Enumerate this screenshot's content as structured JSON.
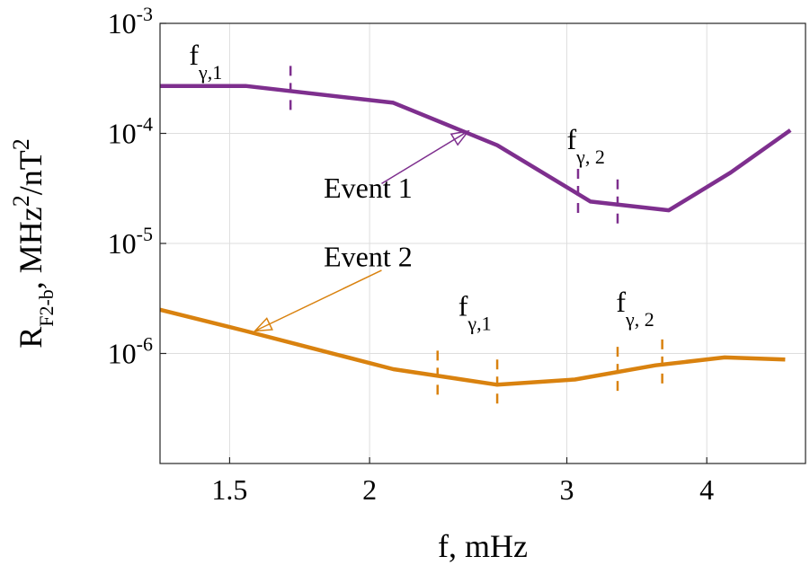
{
  "chart_data": {
    "type": "line",
    "xlabel": "f, mHz",
    "ylabel": {
      "main": "R",
      "sub": "F2-b",
      "rest": ", MHz",
      "sup1": "2",
      "mid": "/nT",
      "sup2": "2"
    },
    "x_scale": "log",
    "y_scale": "log",
    "xlim": [
      1.3,
      4.9
    ],
    "ylim": [
      1e-07,
      0.001
    ],
    "x_ticks": [
      {
        "value": 1.5,
        "label": "1.5"
      },
      {
        "value": 2,
        "label": "2"
      },
      {
        "value": 3,
        "label": "3"
      },
      {
        "value": 4,
        "label": "4"
      }
    ],
    "y_ticks": [
      {
        "value": 1e-06,
        "base": "10",
        "exp": "-6"
      },
      {
        "value": 1e-05,
        "base": "10",
        "exp": "-5"
      },
      {
        "value": 0.0001,
        "base": "10",
        "exp": "-4"
      },
      {
        "value": 0.001,
        "base": "10",
        "exp": "-3"
      }
    ],
    "grid": true,
    "series": [
      {
        "name": "Event 1",
        "color": "#7e2f8e",
        "x": [
          1.3,
          1.55,
          2.1,
          2.6,
          3.15,
          3.7,
          4.2,
          4.75
        ],
        "y": [
          0.00027,
          0.00027,
          0.00019,
          7.8e-05,
          2.4e-05,
          2e-05,
          4.4e-05,
          0.000107
        ]
      },
      {
        "name": "Event 2",
        "color": "#d9820f",
        "x": [
          1.3,
          1.55,
          2.1,
          2.6,
          3.05,
          3.6,
          4.15,
          4.7
        ],
        "y": [
          2.5e-06,
          1.6e-06,
          7.2e-07,
          5.2e-07,
          5.8e-07,
          7.8e-07,
          9.2e-07,
          8.8e-07
        ]
      }
    ],
    "markers": [
      {
        "series": 0,
        "x": 1.7
      },
      {
        "series": 0,
        "x": 3.07
      },
      {
        "series": 0,
        "x": 3.33
      },
      {
        "series": 1,
        "x": 2.3
      },
      {
        "series": 1,
        "x": 2.6
      },
      {
        "series": 1,
        "x": 3.33
      },
      {
        "series": 1,
        "x": 3.65
      }
    ],
    "annotations": [
      {
        "id": "ev1-fg1",
        "main": "f",
        "sub": "γ,1",
        "x": 1.38,
        "y": 0.00042,
        "series": 0
      },
      {
        "id": "ev1-fg2",
        "main": "f",
        "sub": "γ, 2",
        "x": 3.0,
        "y": 7.2e-05,
        "series": 0
      },
      {
        "id": "ev2-fg1",
        "main": "f",
        "sub": "γ,1",
        "x": 2.4,
        "y": 2.2e-06,
        "series": 1
      },
      {
        "id": "ev2-fg2",
        "main": "f",
        "sub": "γ, 2",
        "x": 3.32,
        "y": 2.4e-06,
        "series": 1
      }
    ],
    "event_labels": [
      {
        "series": 0,
        "text": "Event 1",
        "text_x": 1.82,
        "text_y": 2.6e-05,
        "arrow_from": [
          2.05,
          3.5e-05
        ],
        "arrow_to": [
          2.45,
          0.000105
        ]
      },
      {
        "series": 1,
        "text": "Event 2",
        "text_x": 1.82,
        "text_y": 6.2e-06,
        "arrow_from": [
          2.05,
          5.7e-06
        ],
        "arrow_to": [
          1.58,
          1.6e-06
        ]
      }
    ]
  }
}
